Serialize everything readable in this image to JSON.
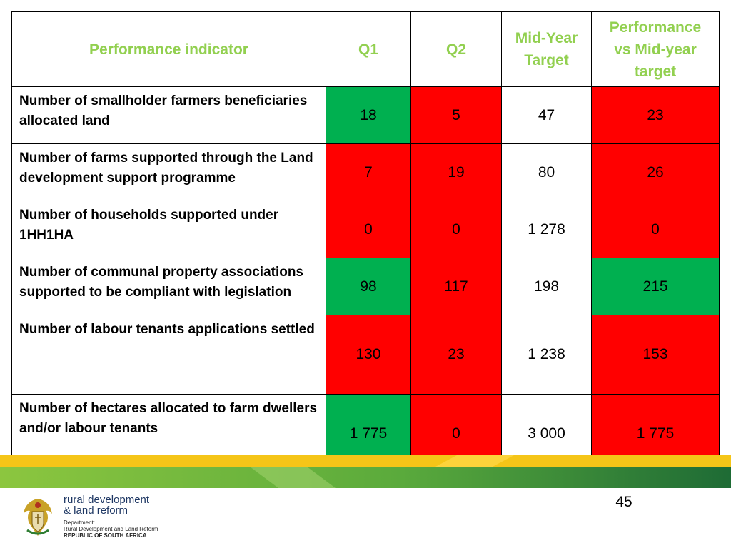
{
  "table": {
    "headers": {
      "indicator": "Performance indicator",
      "q1": "Q1",
      "q2": "Q2",
      "mid_year_target": "Mid-Year Target",
      "performance_vs_target": "Performance vs Mid-year target"
    },
    "rows": [
      {
        "indicator": "Number of smallholder farmers beneficiaries allocated land",
        "q1": "18",
        "q2": "5",
        "target": "47",
        "performance": "23",
        "q1_status": "green",
        "q2_status": "red",
        "performance_status": "red"
      },
      {
        "indicator": "Number of farms supported through the Land development support programme",
        "q1": "7",
        "q2": "19",
        "target": "80",
        "performance": "26",
        "q1_status": "red",
        "q2_status": "red",
        "performance_status": "red"
      },
      {
        "indicator": "Number of households supported under 1HH1HA",
        "q1": "0",
        "q2": "0",
        "target": "1 278",
        "performance": "0",
        "q1_status": "red",
        "q2_status": "red",
        "performance_status": "red"
      },
      {
        "indicator": "Number of communal property associations supported to be compliant with legislation",
        "q1": "98",
        "q2": "117",
        "target": "198",
        "performance": "215",
        "q1_status": "green",
        "q2_status": "red",
        "performance_status": "green"
      },
      {
        "indicator": "Number of labour tenants applications settled",
        "q1": "130",
        "q2": "23",
        "target": "1 238",
        "performance": "153",
        "q1_status": "red",
        "q2_status": "red",
        "performance_status": "red"
      },
      {
        "indicator": "Number of hectares allocated to farm dwellers and/or labour tenants",
        "q1": "1 775",
        "q2": "0",
        "target": "3 000",
        "performance": "1 775",
        "q1_status": "green",
        "q2_status": "red",
        "performance_status": "red"
      }
    ]
  },
  "colors": {
    "header_text": "#92d050",
    "status_green": "#00b050",
    "status_red": "#ff0000",
    "footer_yellow": "#f5c518",
    "footer_green": "#3f9a3c"
  },
  "footer": {
    "page_number": "45",
    "logo": {
      "line1": "rural development",
      "line2": "& land reform",
      "dept_label": "Department:",
      "dept_name": "Rural Development and Land Reform",
      "country": "REPUBLIC OF SOUTH AFRICA",
      "crest": "coat-of-arms-icon"
    }
  }
}
